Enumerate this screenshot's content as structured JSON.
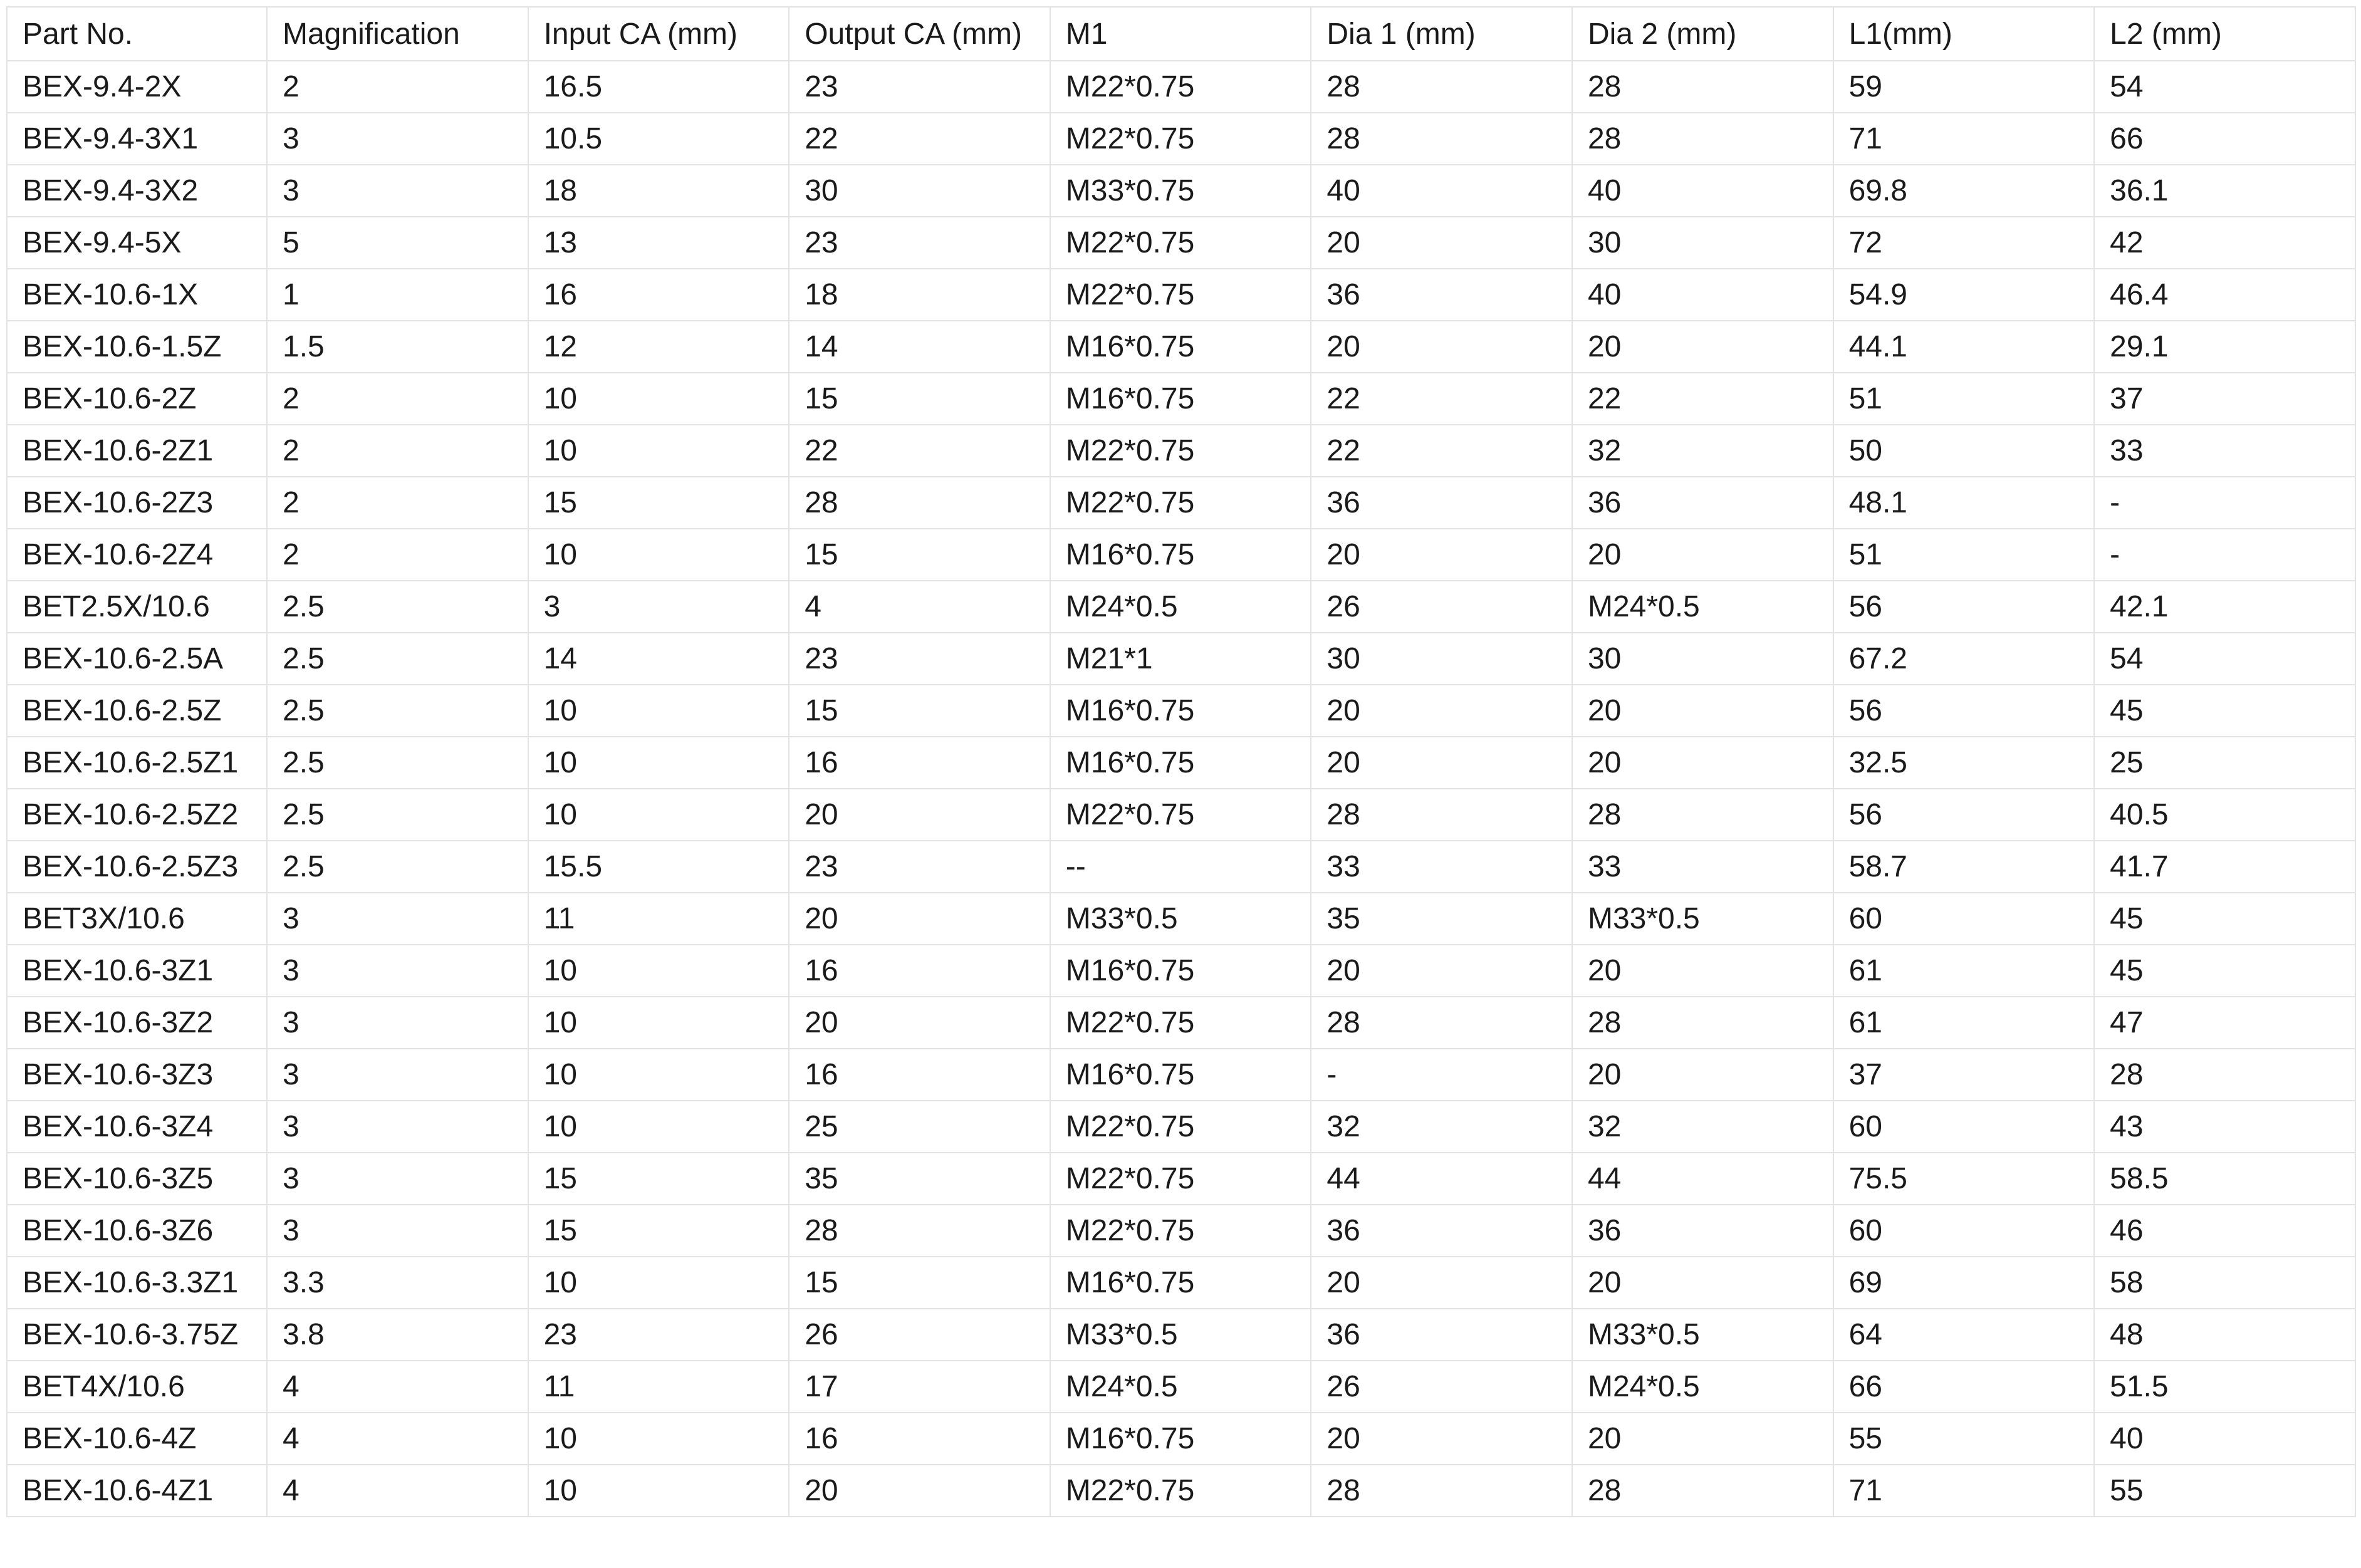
{
  "table": {
    "headers": [
      "Part No.",
      "Magnification",
      "Input CA (mm)",
      "Output CA (mm)",
      "M1",
      "Dia 1 (mm)",
      "Dia 2 (mm)",
      "L1(mm)",
      "L2 (mm)"
    ],
    "rows": [
      [
        "BEX-9.4-2X",
        "2",
        "16.5",
        "23",
        "M22*0.75",
        "28",
        "28",
        "59",
        "54"
      ],
      [
        "BEX-9.4-3X1",
        "3",
        "10.5",
        "22",
        "M22*0.75",
        "28",
        "28",
        "71",
        "66"
      ],
      [
        "BEX-9.4-3X2",
        "3",
        "18",
        "30",
        "M33*0.75",
        "40",
        "40",
        "69.8",
        "36.1"
      ],
      [
        "BEX-9.4-5X",
        "5",
        "13",
        "23",
        "M22*0.75",
        "20",
        "30",
        "72",
        "42"
      ],
      [
        "BEX-10.6-1X",
        "1",
        "16",
        "18",
        "M22*0.75",
        "36",
        "40",
        "54.9",
        "46.4"
      ],
      [
        "BEX-10.6-1.5Z",
        "1.5",
        "12",
        "14",
        "M16*0.75",
        "20",
        "20",
        "44.1",
        "29.1"
      ],
      [
        "BEX-10.6-2Z",
        "2",
        "10",
        "15",
        "M16*0.75",
        "22",
        "22",
        "51",
        "37"
      ],
      [
        "BEX-10.6-2Z1",
        "2",
        "10",
        "22",
        "M22*0.75",
        "22",
        "32",
        "50",
        "33"
      ],
      [
        "BEX-10.6-2Z3",
        "2",
        "15",
        "28",
        "M22*0.75",
        "36",
        "36",
        "48.1",
        "-"
      ],
      [
        "BEX-10.6-2Z4",
        "2",
        "10",
        "15",
        "M16*0.75",
        "20",
        "20",
        "51",
        "-"
      ],
      [
        "BET2.5X/10.6",
        "2.5",
        "3",
        "4",
        "M24*0.5",
        "26",
        "M24*0.5",
        "56",
        "42.1"
      ],
      [
        "BEX-10.6-2.5A",
        "2.5",
        "14",
        "23",
        "M21*1",
        "30",
        "30",
        "67.2",
        "54"
      ],
      [
        "BEX-10.6-2.5Z",
        "2.5",
        "10",
        "15",
        "M16*0.75",
        "20",
        "20",
        "56",
        "45"
      ],
      [
        "BEX-10.6-2.5Z1",
        "2.5",
        "10",
        "16",
        "M16*0.75",
        "20",
        "20",
        "32.5",
        "25"
      ],
      [
        "BEX-10.6-2.5Z2",
        "2.5",
        "10",
        "20",
        "M22*0.75",
        "28",
        "28",
        "56",
        "40.5"
      ],
      [
        "BEX-10.6-2.5Z3",
        "2.5",
        "15.5",
        "23",
        "--",
        "33",
        "33",
        "58.7",
        "41.7"
      ],
      [
        "BET3X/10.6",
        "3",
        "11",
        "20",
        "M33*0.5",
        "35",
        "M33*0.5",
        "60",
        "45"
      ],
      [
        "BEX-10.6-3Z1",
        "3",
        "10",
        "16",
        "M16*0.75",
        "20",
        "20",
        "61",
        "45"
      ],
      [
        "BEX-10.6-3Z2",
        "3",
        "10",
        "20",
        "M22*0.75",
        "28",
        "28",
        "61",
        "47"
      ],
      [
        "BEX-10.6-3Z3",
        "3",
        "10",
        "16",
        "M16*0.75",
        "-",
        "20",
        "37",
        "28"
      ],
      [
        "BEX-10.6-3Z4",
        "3",
        "10",
        "25",
        "M22*0.75",
        "32",
        "32",
        "60",
        "43"
      ],
      [
        "BEX-10.6-3Z5",
        "3",
        "15",
        "35",
        "M22*0.75",
        "44",
        "44",
        "75.5",
        "58.5"
      ],
      [
        "BEX-10.6-3Z6",
        "3",
        "15",
        "28",
        "M22*0.75",
        "36",
        "36",
        "60",
        "46"
      ],
      [
        "BEX-10.6-3.3Z1",
        "3.3",
        "10",
        "15",
        "M16*0.75",
        "20",
        "20",
        "69",
        "58"
      ],
      [
        "BEX-10.6-3.75Z",
        "3.8",
        "23",
        "26",
        "M33*0.5",
        "36",
        "M33*0.5",
        "64",
        "48"
      ],
      [
        "BET4X/10.6",
        "4",
        "11",
        "17",
        "M24*0.5",
        "26",
        "M24*0.5",
        "66",
        "51.5"
      ],
      [
        "BEX-10.6-4Z",
        "4",
        "10",
        "16",
        "M16*0.75",
        "20",
        "20",
        "55",
        "40"
      ],
      [
        "BEX-10.6-4Z1",
        "4",
        "10",
        "20",
        "M22*0.75",
        "28",
        "28",
        "71",
        "55"
      ]
    ]
  }
}
